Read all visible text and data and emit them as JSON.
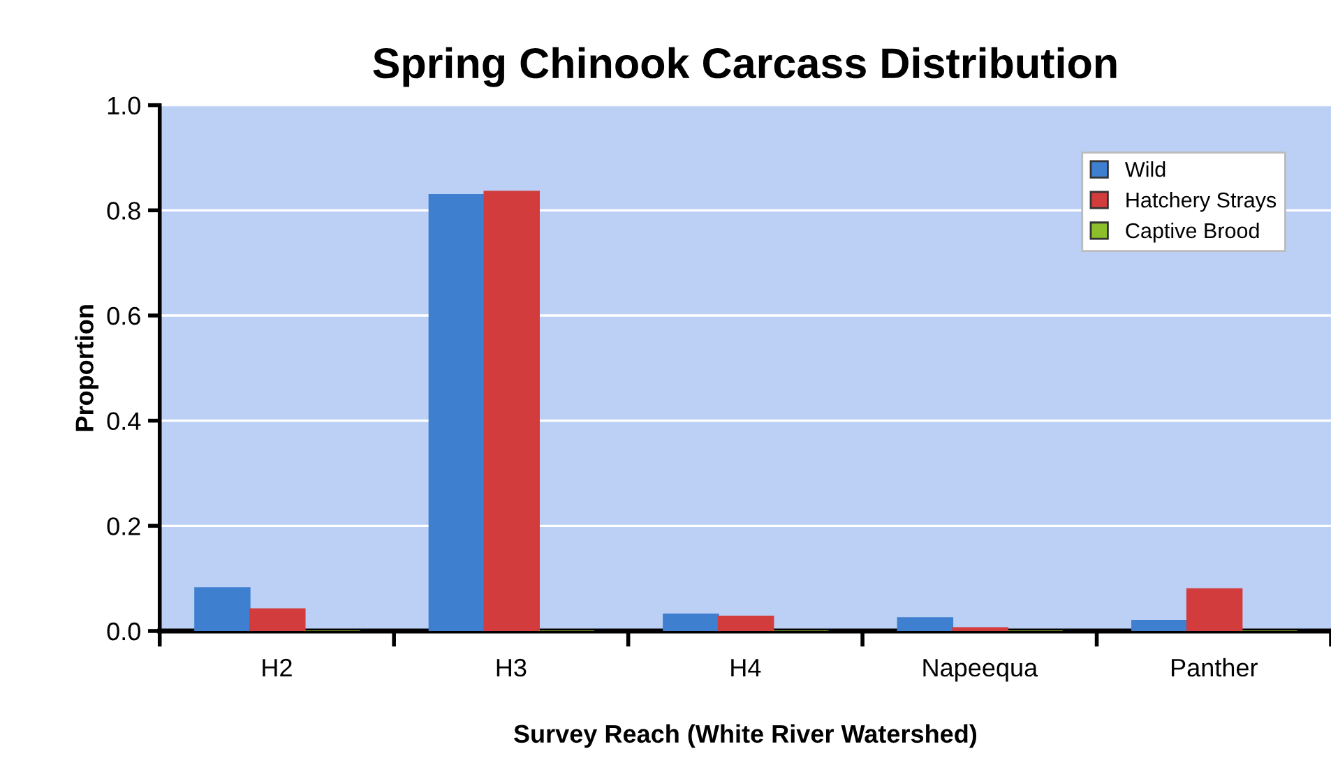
{
  "chart_data": {
    "type": "bar",
    "title": "Spring Chinook Carcass Distribution",
    "xlabel": "Survey Reach (White River Watershed)",
    "ylabel": "Proportion",
    "categories": [
      "H2",
      "H3",
      "H4",
      "Napeequa",
      "Panther"
    ],
    "series": [
      {
        "name": "Wild",
        "color": "#3f7fd0",
        "values": [
          0.082,
          0.83,
          0.032,
          0.025,
          0.02
        ]
      },
      {
        "name": "Hatchery Strays",
        "color": "#d23c3c",
        "values": [
          0.042,
          0.836,
          0.028,
          0.006,
          0.08
        ]
      },
      {
        "name": "Captive Brood",
        "color": "#8cbf2a",
        "values": [
          0,
          0,
          0,
          0,
          0
        ]
      }
    ],
    "ylim": [
      0,
      1.0
    ],
    "yticks": [
      {
        "value": 0,
        "label": "0.0"
      },
      0.2,
      0.4,
      0.6,
      0.8,
      {
        "value": 1,
        "label": "1.0"
      }
    ],
    "grid": "y",
    "legend": "top right"
  }
}
